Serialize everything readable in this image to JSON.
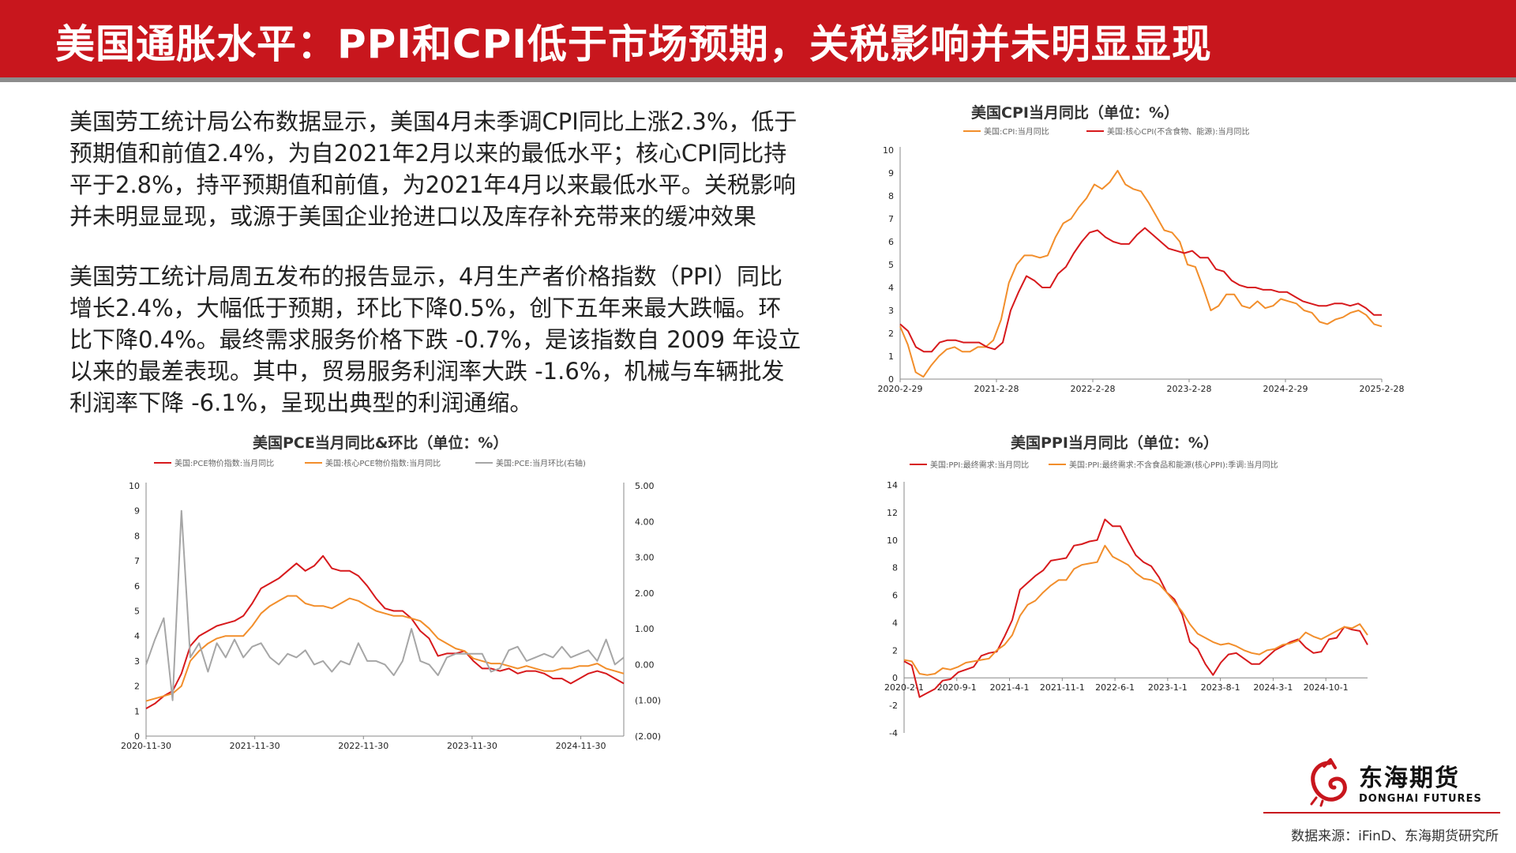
{
  "header": {
    "title": "美国通胀水平：PPI和CPI低于市场预期，关税影响并未明显显现"
  },
  "paragraphs": {
    "p1": "美国劳工统计局公布数据显示，美国4月未季调CPI同比上涨2.3%，低于预期值和前值2.4%，为自2021年2月以来的最低水平；核心CPI同比持平于2.8%，持平预期值和前值，为2021年4月以来最低水平。关税影响并未明显显现，或源于美国企业抢进口以及库存补充带来的缓冲效果",
    "p2": "美国劳工统计局周五发布的报告显示，4月生产者价格指数（PPI）同比增长2.4%，大幅低于预期，环比下降0.5%，创下五年来最大跌幅。环比下降0.4%。最终需求服务价格下跌 -0.7%，是该指数自 2009 年设立以来的最差表现。其中，贸易服务利润率大跌 -1.6%，机械与车辆批发利润率下降 -6.1%，呈现出典型的利润通缩。"
  },
  "colors": {
    "red": "#d7191c",
    "orange": "#f28e2b",
    "gray": "#a6a6a6",
    "brand": "#c8161d"
  },
  "footer": {
    "logo_cn": "东海期货",
    "logo_en": "DONGHAI FUTURES",
    "source": "数据来源：iFinD、东海期货研究所"
  },
  "chart_data": [
    {
      "id": "cpi",
      "type": "line",
      "title": "美国CPI当月同比（单位：%）",
      "x_ticks": [
        "2020-2-29",
        "2021-2-28",
        "2022-2-28",
        "2023-2-28",
        "2024-2-29",
        "2025-2-28"
      ],
      "ylim": [
        0,
        10
      ],
      "y_ticks": [
        "0",
        "1",
        "2",
        "3",
        "4",
        "5",
        "6",
        "7",
        "8",
        "9",
        "10"
      ],
      "series": [
        {
          "name": "美国:CPI:当月同比",
          "color": "#f28e2b",
          "values": [
            2.3,
            1.5,
            0.3,
            0.1,
            0.6,
            1.0,
            1.3,
            1.4,
            1.2,
            1.2,
            1.4,
            1.4,
            1.7,
            2.6,
            4.2,
            5.0,
            5.4,
            5.4,
            5.3,
            5.4,
            6.2,
            6.8,
            7.0,
            7.5,
            7.9,
            8.5,
            8.3,
            8.6,
            9.1,
            8.5,
            8.3,
            8.2,
            7.7,
            7.1,
            6.5,
            6.4,
            6.0,
            5.0,
            4.9,
            4.0,
            3.0,
            3.2,
            3.7,
            3.7,
            3.2,
            3.1,
            3.4,
            3.1,
            3.2,
            3.5,
            3.4,
            3.3,
            3.0,
            2.9,
            2.5,
            2.4,
            2.6,
            2.7,
            2.9,
            3.0,
            2.8,
            2.4,
            2.3
          ]
        },
        {
          "name": "美国:核心CPI(不含食物、能源):当月同比",
          "color": "#d7191c",
          "values": [
            2.4,
            2.1,
            1.4,
            1.2,
            1.2,
            1.6,
            1.7,
            1.7,
            1.6,
            1.6,
            1.6,
            1.4,
            1.3,
            1.6,
            3.0,
            3.8,
            4.5,
            4.3,
            4.0,
            4.0,
            4.6,
            4.9,
            5.5,
            6.0,
            6.4,
            6.5,
            6.2,
            6.0,
            5.9,
            5.9,
            6.3,
            6.6,
            6.3,
            6.0,
            5.7,
            5.6,
            5.5,
            5.6,
            5.3,
            5.3,
            4.8,
            4.7,
            4.3,
            4.1,
            4.0,
            4.0,
            3.9,
            3.9,
            3.8,
            3.8,
            3.6,
            3.4,
            3.3,
            3.2,
            3.2,
            3.3,
            3.3,
            3.2,
            3.3,
            3.1,
            2.8,
            2.8
          ]
        }
      ]
    },
    {
      "id": "pce",
      "type": "line",
      "title": "美国PCE当月同比&环比（单位：%）",
      "x_ticks": [
        "2020-11-30",
        "2021-11-30",
        "2022-11-30",
        "2023-11-30",
        "2024-11-30"
      ],
      "ylim": [
        0,
        10
      ],
      "y_ticks": [
        "0",
        "1",
        "2",
        "3",
        "4",
        "5",
        "6",
        "7",
        "8",
        "9",
        "10"
      ],
      "y2lim": [
        -2,
        5
      ],
      "y2_ticks": [
        "(2.00)",
        "(1.00)",
        "0.00",
        "1.00",
        "2.00",
        "3.00",
        "4.00",
        "5.00"
      ],
      "series": [
        {
          "name": "美国:PCE物价指数:当月同比",
          "color": "#d7191c",
          "axis": "left",
          "values": [
            1.1,
            1.3,
            1.6,
            1.8,
            2.5,
            3.6,
            4.0,
            4.2,
            4.4,
            4.5,
            4.6,
            4.8,
            5.3,
            5.9,
            6.1,
            6.3,
            6.6,
            6.9,
            6.6,
            6.8,
            7.2,
            6.7,
            6.6,
            6.6,
            6.4,
            6.0,
            5.5,
            5.1,
            5.0,
            5.0,
            4.7,
            4.2,
            3.9,
            3.2,
            3.3,
            3.3,
            3.4,
            3.0,
            2.7,
            2.7,
            2.6,
            2.7,
            2.5,
            2.6,
            2.6,
            2.5,
            2.3,
            2.3,
            2.1,
            2.3,
            2.5,
            2.6,
            2.5,
            2.3,
            2.1
          ]
        },
        {
          "name": "美国:核心PCE物价指数:当月同比",
          "color": "#f28e2b",
          "axis": "left",
          "values": [
            1.4,
            1.5,
            1.6,
            1.7,
            2.0,
            3.0,
            3.4,
            3.7,
            3.9,
            4.0,
            4.0,
            4.0,
            4.4,
            4.9,
            5.2,
            5.4,
            5.6,
            5.6,
            5.3,
            5.2,
            5.2,
            5.1,
            5.3,
            5.5,
            5.4,
            5.2,
            5.0,
            4.9,
            4.8,
            4.8,
            4.7,
            4.6,
            4.3,
            3.9,
            3.7,
            3.5,
            3.4,
            3.1,
            3.0,
            2.9,
            2.9,
            2.8,
            2.7,
            2.8,
            2.7,
            2.6,
            2.6,
            2.7,
            2.7,
            2.8,
            2.8,
            2.9,
            2.7,
            2.6,
            2.5
          ]
        },
        {
          "name": "美国:PCE:当月环比(右轴)",
          "color": "#a6a6a6",
          "axis": "right",
          "values": [
            0.0,
            0.7,
            1.3,
            -1.0,
            4.3,
            0.2,
            0.6,
            -0.2,
            0.6,
            0.2,
            0.7,
            0.2,
            0.5,
            0.6,
            0.2,
            0.0,
            0.3,
            0.2,
            0.4,
            0.0,
            0.1,
            -0.2,
            0.1,
            0.0,
            0.6,
            0.1,
            0.1,
            0.0,
            -0.3,
            0.1,
            1.0,
            0.1,
            0.0,
            -0.3,
            0.2,
            0.3,
            0.3,
            0.3,
            0.3,
            -0.2,
            -0.1,
            0.4,
            0.5,
            0.1,
            0.2,
            0.3,
            0.2,
            0.5,
            0.2,
            0.3,
            0.4,
            0.1,
            0.7,
            0.0,
            0.2
          ]
        }
      ]
    },
    {
      "id": "ppi",
      "type": "line",
      "title": "美国PPI当月同比（单位：%）",
      "x_ticks": [
        "2020-2-1",
        "2020-9-1",
        "2021-4-1",
        "2021-11-1",
        "2022-6-1",
        "2023-1-1",
        "2023-8-1",
        "2024-3-1",
        "2024-10-1"
      ],
      "ylim": [
        -4,
        14
      ],
      "y_ticks": [
        "-4",
        "-2",
        "0",
        "2",
        "4",
        "6",
        "8",
        "10",
        "12",
        "14"
      ],
      "series": [
        {
          "name": "美国:PPI:最终需求:当月同比",
          "color": "#d7191c",
          "values": [
            1.2,
            0.9,
            -1.4,
            -1.1,
            -0.8,
            -0.2,
            -0.1,
            0.4,
            0.6,
            0.8,
            1.6,
            1.8,
            1.9,
            3.0,
            4.2,
            6.4,
            6.9,
            7.4,
            7.8,
            8.5,
            8.6,
            8.7,
            9.6,
            9.7,
            9.9,
            10.0,
            11.5,
            11.0,
            11.0,
            9.9,
            8.9,
            8.4,
            8.1,
            7.3,
            6.2,
            5.7,
            4.6,
            2.6,
            2.1,
            1.0,
            0.2,
            1.1,
            1.7,
            1.8,
            1.4,
            1.0,
            1.0,
            1.5,
            2.0,
            2.3,
            2.6,
            2.8,
            2.2,
            1.8,
            1.9,
            2.8,
            2.9,
            3.7,
            3.5,
            3.4,
            2.4
          ]
        },
        {
          "name": "美国:PPI:最终需求:不含食品和能源(核心PPI):季调:当月同比",
          "color": "#f28e2b",
          "values": [
            1.3,
            1.2,
            0.3,
            0.2,
            0.3,
            0.7,
            0.6,
            0.8,
            1.1,
            1.2,
            1.3,
            1.4,
            2.0,
            2.4,
            3.1,
            4.5,
            5.3,
            5.6,
            6.2,
            6.7,
            7.1,
            7.1,
            7.9,
            8.2,
            8.3,
            8.4,
            9.6,
            8.8,
            8.5,
            8.2,
            7.6,
            7.2,
            7.1,
            6.8,
            6.2,
            5.5,
            4.8,
            3.9,
            3.2,
            2.9,
            2.6,
            2.4,
            2.5,
            2.3,
            2.0,
            1.8,
            1.7,
            2.0,
            2.1,
            2.4,
            2.5,
            2.7,
            3.3,
            3.0,
            2.8,
            3.1,
            3.4,
            3.7,
            3.6,
            3.9,
            3.1
          ]
        }
      ]
    }
  ]
}
